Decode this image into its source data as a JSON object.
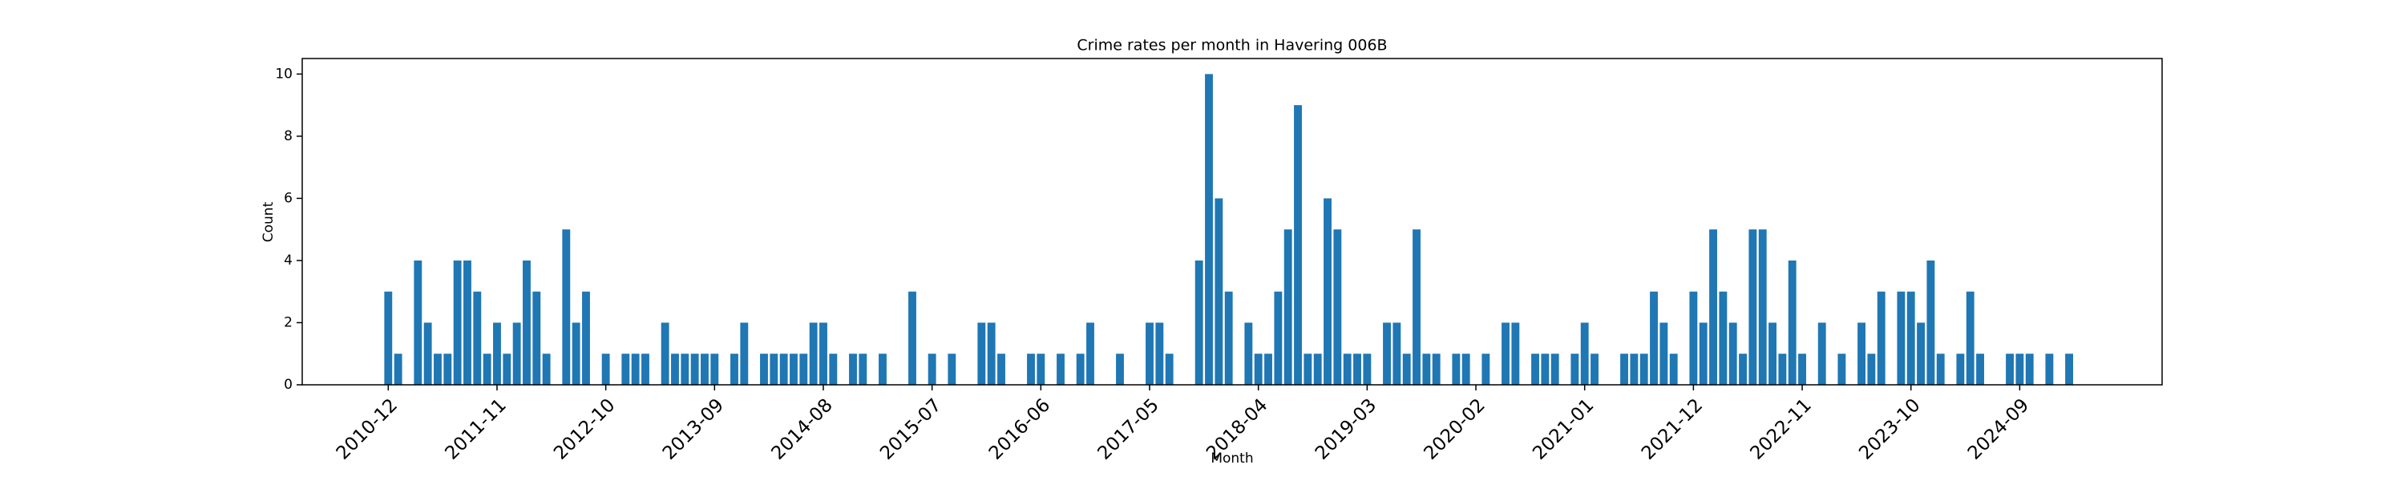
{
  "chart_data": {
    "type": "bar",
    "title": "Crime rates per month in Havering 006B",
    "x_label": "Month",
    "y_label": "Count",
    "color": "#1f77b4",
    "categories": [
      "2010-12",
      null,
      null,
      null,
      null,
      null,
      null,
      null,
      null,
      null,
      null,
      "2011-11",
      null,
      null,
      null,
      null,
      null,
      null,
      null,
      null,
      null,
      null,
      "2012-10",
      null,
      null,
      null,
      null,
      null,
      null,
      null,
      null,
      null,
      null,
      "2013-09",
      null,
      null,
      null,
      null,
      null,
      null,
      null,
      null,
      null,
      null,
      "2014-08",
      null,
      null,
      null,
      null,
      null,
      null,
      null,
      null,
      null,
      null,
      "2015-07",
      null,
      null,
      null,
      null,
      null,
      null,
      null,
      null,
      null,
      null,
      "2016-06",
      null,
      null,
      null,
      null,
      null,
      null,
      null,
      null,
      null,
      null,
      "2017-05",
      null,
      null,
      null,
      null,
      null,
      null,
      null,
      null,
      null,
      null,
      "2018-04",
      null,
      null,
      null,
      null,
      null,
      null,
      null,
      null,
      null,
      null,
      "2019-03",
      null,
      null,
      null,
      null,
      null,
      null,
      null,
      null,
      null,
      null,
      "2020-02",
      null,
      null,
      null,
      null,
      null,
      null,
      null,
      null,
      null,
      null,
      "2021-01",
      null,
      null,
      null,
      null,
      null,
      null,
      null,
      null,
      null,
      null,
      "2021-12",
      null,
      null,
      null,
      null,
      null,
      null,
      null,
      null,
      null,
      null,
      "2022-11",
      null,
      null,
      null,
      null,
      null,
      null,
      null,
      null,
      null,
      null,
      "2023-10",
      null,
      null,
      null,
      null,
      null,
      null,
      null,
      null,
      null,
      null,
      "2024-09",
      null,
      null,
      null,
      null,
      null
    ],
    "values": [
      3,
      1,
      0,
      4,
      2,
      1,
      1,
      4,
      4,
      3,
      1,
      2,
      1,
      2,
      4,
      3,
      1,
      0,
      5,
      2,
      3,
      0,
      1,
      0,
      1,
      1,
      1,
      0,
      2,
      1,
      1,
      1,
      1,
      1,
      0,
      1,
      2,
      0,
      1,
      1,
      1,
      1,
      1,
      2,
      2,
      1,
      0,
      1,
      1,
      0,
      1,
      0,
      0,
      3,
      0,
      1,
      0,
      1,
      0,
      0,
      2,
      2,
      1,
      0,
      0,
      1,
      1,
      0,
      1,
      0,
      1,
      2,
      0,
      0,
      1,
      0,
      0,
      2,
      2,
      1,
      0,
      0,
      4,
      10,
      6,
      3,
      0,
      2,
      1,
      1,
      3,
      5,
      9,
      1,
      1,
      6,
      5,
      1,
      1,
      1,
      0,
      2,
      2,
      1,
      5,
      1,
      1,
      0,
      1,
      1,
      0,
      1,
      0,
      2,
      2,
      0,
      1,
      1,
      1,
      0,
      1,
      2,
      1,
      0,
      0,
      1,
      1,
      1,
      3,
      2,
      1,
      0,
      3,
      2,
      5,
      3,
      2,
      1,
      5,
      5,
      2,
      1,
      4,
      1,
      0,
      2,
      0,
      1,
      0,
      2,
      1,
      3,
      0,
      3,
      3,
      2,
      4,
      1,
      0,
      1,
      3,
      1,
      0,
      0,
      1,
      1,
      1,
      0,
      1,
      0,
      1
    ],
    "xlim": [
      -8.7,
      179.4
    ],
    "ylim": [
      0,
      10.5
    ],
    "yticks": [
      0,
      2,
      4,
      6,
      8,
      10
    ],
    "grid": false
  }
}
